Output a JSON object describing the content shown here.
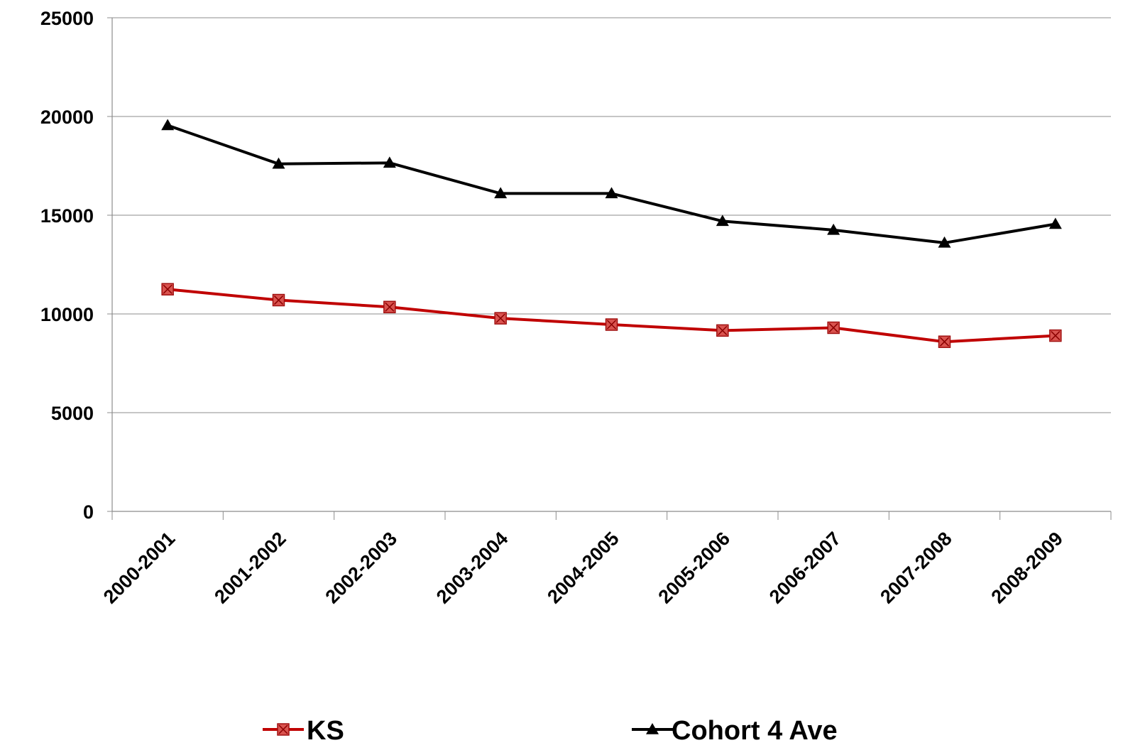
{
  "chart_data": {
    "type": "line",
    "title": "",
    "xlabel": "",
    "ylabel": "",
    "categories": [
      "2000-2001",
      "2001-2002",
      "2002-2003",
      "2003-2004",
      "2004-2005",
      "2005-2006",
      "2006-2007",
      "2007-2008",
      "2008-2009"
    ],
    "ylim": [
      0,
      25000
    ],
    "yticks": [
      "0",
      "5000",
      "10000",
      "15000",
      "20000",
      "25000"
    ],
    "grid": true,
    "legend_position": "bottom",
    "series": [
      {
        "name": "KS",
        "marker": "square-x",
        "color": "#c00000",
        "values": [
          11250,
          10700,
          10350,
          9780,
          9460,
          9160,
          9300,
          8590,
          8900
        ]
      },
      {
        "name": "Cohort 4 Ave",
        "marker": "triangle",
        "color": "#000000",
        "values": [
          19550,
          17600,
          17650,
          16100,
          16100,
          14700,
          14250,
          13600,
          14550
        ]
      }
    ]
  }
}
